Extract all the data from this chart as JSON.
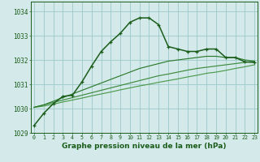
{
  "x": [
    0,
    1,
    2,
    3,
    4,
    5,
    6,
    7,
    8,
    9,
    10,
    11,
    12,
    13,
    14,
    15,
    16,
    17,
    18,
    19,
    20,
    21,
    22,
    23
  ],
  "line1": [
    1029.3,
    1029.8,
    1030.2,
    1030.5,
    1030.55,
    1031.1,
    1031.75,
    1032.35,
    1032.75,
    1033.1,
    1033.55,
    1033.73,
    1033.73,
    1033.45,
    1032.55,
    1032.45,
    1032.35,
    1032.35,
    1032.45,
    1032.45,
    1032.1,
    1032.1,
    1031.92,
    1031.9
  ],
  "line2": [
    1030.05,
    1030.15,
    1030.3,
    1030.45,
    1030.6,
    1030.75,
    1030.9,
    1031.05,
    1031.2,
    1031.35,
    1031.5,
    1031.65,
    1031.75,
    1031.85,
    1031.95,
    1032.0,
    1032.05,
    1032.1,
    1032.15,
    1032.15,
    1032.1,
    1032.1,
    1032.0,
    1031.95
  ],
  "line3": [
    1030.05,
    1030.15,
    1030.25,
    1030.35,
    1030.45,
    1030.55,
    1030.65,
    1030.75,
    1030.85,
    1030.95,
    1031.05,
    1031.15,
    1031.25,
    1031.35,
    1031.42,
    1031.5,
    1031.58,
    1031.65,
    1031.7,
    1031.75,
    1031.8,
    1031.85,
    1031.9,
    1031.95
  ],
  "line4": [
    1030.05,
    1030.1,
    1030.18,
    1030.27,
    1030.35,
    1030.43,
    1030.52,
    1030.6,
    1030.68,
    1030.77,
    1030.85,
    1030.93,
    1031.0,
    1031.08,
    1031.15,
    1031.22,
    1031.3,
    1031.37,
    1031.45,
    1031.5,
    1031.57,
    1031.65,
    1031.72,
    1031.8
  ],
  "color_main": "#1a5c1a",
  "color_line2": "#2d7a2d",
  "color_line3": "#3d8a3d",
  "color_line4": "#4d9a4d",
  "bg_color": "#d4eaea",
  "grid_color": "#9ec8c8",
  "ylim": [
    1029.0,
    1034.4
  ],
  "yticks": [
    1029,
    1030,
    1031,
    1032,
    1033,
    1034
  ],
  "xlabel": "Graphe pression niveau de la mer (hPa)"
}
